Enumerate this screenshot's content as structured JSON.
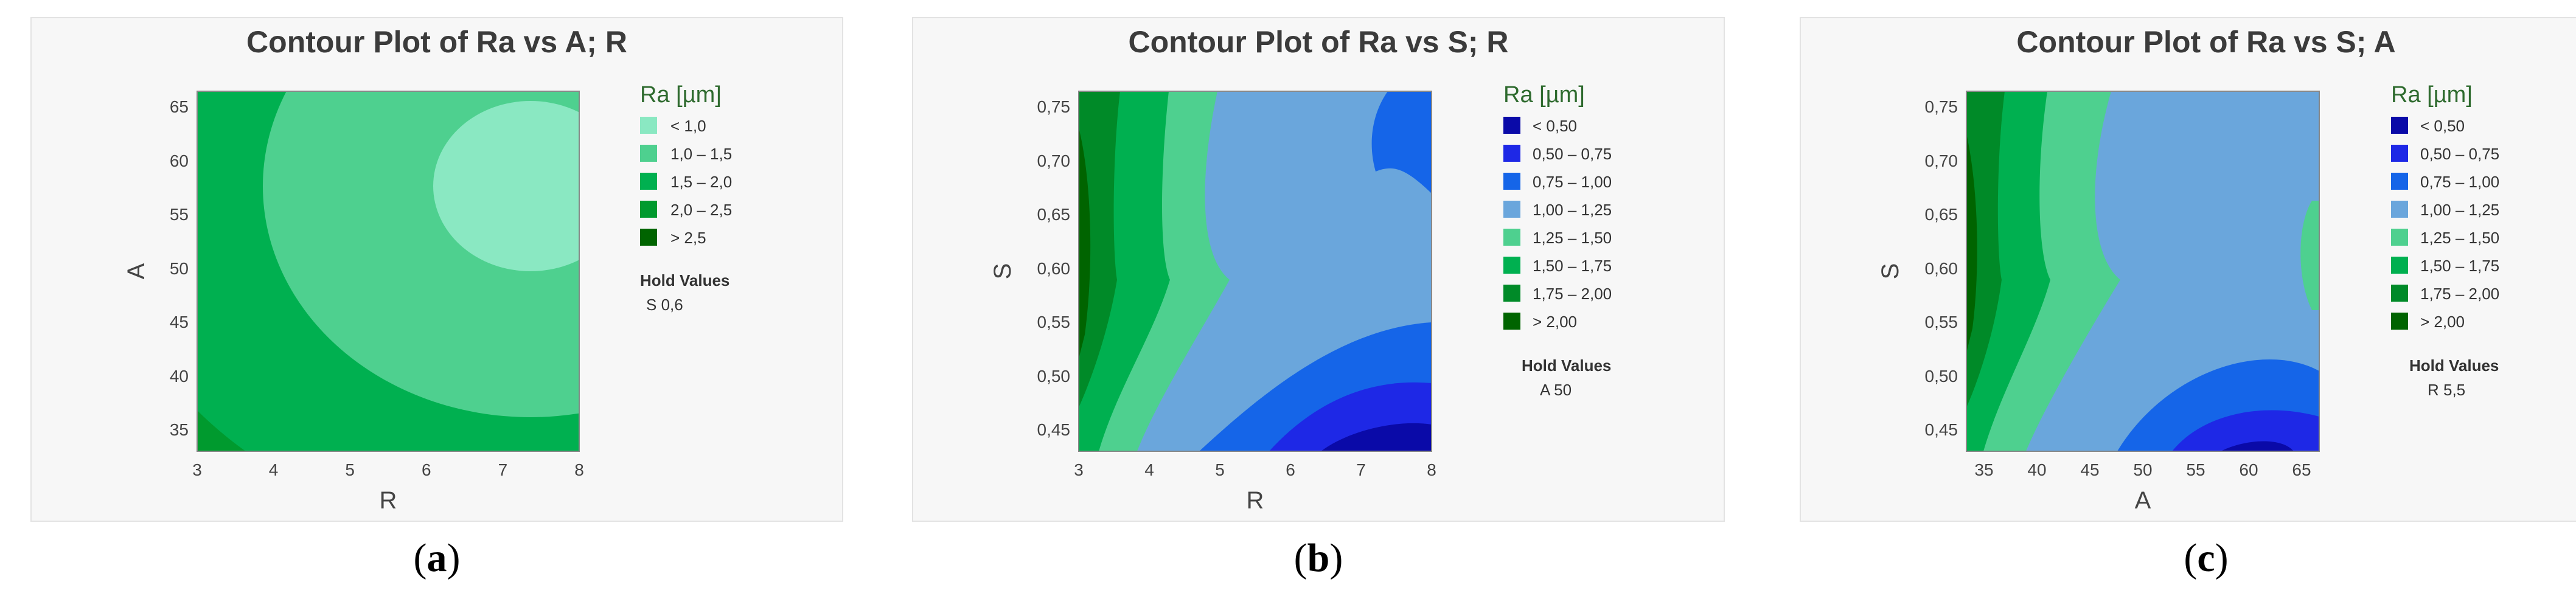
{
  "chart_data": [
    {
      "type": "heatmap",
      "title": "Contour Plot of Ra vs A; R",
      "xlabel": "R",
      "ylabel": "A",
      "xlim": [
        3,
        8
      ],
      "ylim": [
        33.3,
        66.7
      ],
      "xticks": [
        "3",
        "4",
        "5",
        "6",
        "7",
        "8"
      ],
      "yticks": [
        "35",
        "40",
        "45",
        "50",
        "55",
        "60",
        "65"
      ],
      "legend_title": "Ra [µm]",
      "legend": [
        {
          "label": "<   1,0",
          "color": "#8ae8c2"
        },
        {
          "label": "1,0  –  1,5",
          "color": "#4ed08f"
        },
        {
          "label": "1,5  –  2,0",
          "color": "#00b050"
        },
        {
          "label": "2,0  –  2,5",
          "color": "#009a2e"
        },
        {
          "label": ">   2,5",
          "color": "#006400"
        }
      ],
      "hold_title": "Hold Values",
      "hold_value": "S   0,6",
      "caption": "a"
    },
    {
      "type": "heatmap",
      "title": "Contour Plot of Ra vs S; R",
      "xlabel": "R",
      "ylabel": "S",
      "xlim": [
        3,
        8
      ],
      "ylim": [
        0.433,
        0.767
      ],
      "xticks": [
        "3",
        "4",
        "5",
        "6",
        "7",
        "8"
      ],
      "yticks": [
        "0,45",
        "0,50",
        "0,55",
        "0,60",
        "0,65",
        "0,70",
        "0,75"
      ],
      "legend_title": "Ra [µm]",
      "legend": [
        {
          "label": "<   0,50",
          "color": "#0a0aa8"
        },
        {
          "label": "0,50  –  0,75",
          "color": "#1e28e6"
        },
        {
          "label": "0,75  –  1,00",
          "color": "#1565e8"
        },
        {
          "label": "1,00  –  1,25",
          "color": "#6aa6dc"
        },
        {
          "label": "1,25  –  1,50",
          "color": "#4ed08f"
        },
        {
          "label": "1,50  –  1,75",
          "color": "#00b050"
        },
        {
          "label": "1,75  –  2,00",
          "color": "#008a28"
        },
        {
          "label": ">   2,00",
          "color": "#006400"
        }
      ],
      "hold_title": "Hold Values",
      "hold_value": "A   50",
      "caption": "b"
    },
    {
      "type": "heatmap",
      "title": "Contour Plot of Ra vs S; A",
      "xlabel": "A",
      "ylabel": "S",
      "xlim": [
        33.3,
        66.7
      ],
      "ylim": [
        0.433,
        0.767
      ],
      "xticks": [
        "35",
        "40",
        "45",
        "50",
        "55",
        "60",
        "65"
      ],
      "yticks": [
        "0,45",
        "0,50",
        "0,55",
        "0,60",
        "0,65",
        "0,70",
        "0,75"
      ],
      "legend_title": "Ra [µm]",
      "legend": [
        {
          "label": "<   0,50",
          "color": "#0a0aa8"
        },
        {
          "label": "0,50  –  0,75",
          "color": "#1e28e6"
        },
        {
          "label": "0,75  –  1,00",
          "color": "#1565e8"
        },
        {
          "label": "1,00  –  1,25",
          "color": "#6aa6dc"
        },
        {
          "label": "1,25  –  1,50",
          "color": "#4ed08f"
        },
        {
          "label": "1,50  –  1,75",
          "color": "#00b050"
        },
        {
          "label": "1,75  –  2,00",
          "color": "#008a28"
        },
        {
          "label": ">   2,00",
          "color": "#006400"
        }
      ],
      "hold_title": "Hold Values",
      "hold_value": "R   5,5",
      "caption": "c"
    }
  ]
}
